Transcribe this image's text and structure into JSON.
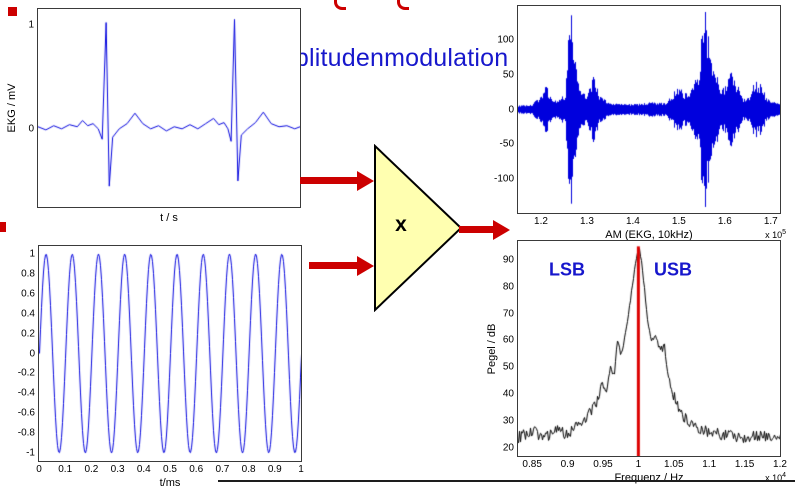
{
  "header": {
    "title": "Amplitudenmodulation"
  },
  "multiplier": {
    "symbol": "x"
  },
  "colors": {
    "arrow_red": "#cc0000",
    "trace_blue": "#0000dd",
    "title_blue": "#1717cc",
    "triangle_fill": "#ffffb0",
    "spectrum_black": "#000000",
    "carrier_red": "#dd0000"
  },
  "chart_data": [
    {
      "id": "ekg",
      "type": "line",
      "color": "#0000dd",
      "xlabel": "t / s",
      "ylabel": "EKG / mV",
      "xlim": [
        0,
        1
      ],
      "ylim": [
        -0.75,
        1.15
      ],
      "yticks": [
        0,
        1
      ],
      "points": [
        [
          0,
          0.02
        ],
        [
          0.03,
          -0.01
        ],
        [
          0.06,
          0.03
        ],
        [
          0.09,
          0
        ],
        [
          0.12,
          0.04
        ],
        [
          0.15,
          0.02
        ],
        [
          0.17,
          0.08
        ],
        [
          0.19,
          0.03
        ],
        [
          0.21,
          0.05
        ],
        [
          0.23,
          0
        ],
        [
          0.245,
          -0.1
        ],
        [
          0.26,
          1.02
        ],
        [
          0.272,
          -0.55
        ],
        [
          0.285,
          -0.08
        ],
        [
          0.31,
          0
        ],
        [
          0.34,
          0.05
        ],
        [
          0.37,
          0.15
        ],
        [
          0.4,
          0.05
        ],
        [
          0.43,
          0
        ],
        [
          0.46,
          0.03
        ],
        [
          0.49,
          -0.02
        ],
        [
          0.52,
          0.02
        ],
        [
          0.55,
          0
        ],
        [
          0.58,
          0.04
        ],
        [
          0.61,
          0
        ],
        [
          0.64,
          0.05
        ],
        [
          0.67,
          0.1
        ],
        [
          0.69,
          0.04
        ],
        [
          0.71,
          0.06
        ],
        [
          0.725,
          0
        ],
        [
          0.737,
          -0.12
        ],
        [
          0.75,
          1.05
        ],
        [
          0.763,
          -0.5
        ],
        [
          0.776,
          -0.06
        ],
        [
          0.8,
          0
        ],
        [
          0.83,
          0.06
        ],
        [
          0.86,
          0.16
        ],
        [
          0.89,
          0.05
        ],
        [
          0.92,
          0.02
        ],
        [
          0.95,
          0.03
        ],
        [
          0.98,
          0
        ],
        [
          1,
          0.02
        ]
      ]
    },
    {
      "id": "carrier",
      "type": "line",
      "signal": "sine",
      "color": "#0000dd",
      "cycles": 10,
      "amplitude": 1,
      "xlabel": "t/ms",
      "ylabel": "",
      "xlim": [
        0,
        1
      ],
      "ylim": [
        -1.08,
        1.08
      ],
      "xticks": [
        0,
        0.1,
        0.2,
        0.3,
        0.4,
        0.5,
        0.6,
        0.7,
        0.8,
        0.9,
        1
      ],
      "yticks": [
        1,
        0.8,
        0.6,
        0.4,
        0.2,
        0,
        -0.2,
        -0.4,
        -0.6,
        -0.8,
        -1
      ]
    },
    {
      "id": "am",
      "type": "am",
      "color": "#0000dd",
      "xlabel": "AM (EKG, 10kHz)",
      "exp_prefix": "x 10",
      "exp_power": "5",
      "xlim": [
        1.15,
        1.72
      ],
      "ylim": [
        -150,
        150
      ],
      "xticks": [
        1.2,
        1.3,
        1.4,
        1.5,
        1.6,
        1.7
      ],
      "yticks": [
        100,
        50,
        0,
        -50,
        -100
      ],
      "envelope": [
        [
          1.15,
          3
        ],
        [
          1.18,
          4
        ],
        [
          1.2,
          16
        ],
        [
          1.21,
          28
        ],
        [
          1.22,
          14
        ],
        [
          1.235,
          8
        ],
        [
          1.253,
          18
        ],
        [
          1.262,
          140
        ],
        [
          1.271,
          70
        ],
        [
          1.282,
          28
        ],
        [
          1.3,
          16
        ],
        [
          1.313,
          38
        ],
        [
          1.328,
          14
        ],
        [
          1.35,
          6
        ],
        [
          1.38,
          5
        ],
        [
          1.41,
          5
        ],
        [
          1.44,
          7
        ],
        [
          1.47,
          6
        ],
        [
          1.5,
          28
        ],
        [
          1.512,
          18
        ],
        [
          1.527,
          24
        ],
        [
          1.543,
          48
        ],
        [
          1.553,
          132
        ],
        [
          1.563,
          95
        ],
        [
          1.575,
          48
        ],
        [
          1.588,
          30
        ],
        [
          1.6,
          26
        ],
        [
          1.613,
          44
        ],
        [
          1.625,
          32
        ],
        [
          1.64,
          12
        ],
        [
          1.653,
          16
        ],
        [
          1.665,
          34
        ],
        [
          1.678,
          30
        ],
        [
          1.69,
          12
        ],
        [
          1.705,
          8
        ],
        [
          1.72,
          5
        ]
      ]
    },
    {
      "id": "spectrum",
      "type": "line",
      "color": "#000000",
      "noise": true,
      "xlabel": "Frequenz / Hz",
      "ylabel": "Pegel / dB",
      "exp_prefix": "x 10",
      "exp_power": "4",
      "xlim": [
        0.83,
        1.2
      ],
      "ylim": [
        17,
        97
      ],
      "xticks": [
        0.85,
        0.9,
        0.95,
        1,
        1.05,
        1.1,
        1.15,
        1.2
      ],
      "yticks": [
        20,
        30,
        40,
        50,
        60,
        70,
        80,
        90
      ],
      "carrier_line_x": 1,
      "carrier_top": 95,
      "carrier_color": "#dd0000",
      "points": [
        [
          0.83,
          24
        ],
        [
          0.85,
          26
        ],
        [
          0.87,
          24
        ],
        [
          0.88,
          27
        ],
        [
          0.9,
          25
        ],
        [
          0.91,
          28
        ],
        [
          0.92,
          30
        ],
        [
          0.93,
          33
        ],
        [
          0.94,
          36
        ],
        [
          0.948,
          44
        ],
        [
          0.953,
          40
        ],
        [
          0.96,
          50
        ],
        [
          0.965,
          47
        ],
        [
          0.97,
          60
        ],
        [
          0.975,
          54
        ],
        [
          0.98,
          61
        ],
        [
          0.985,
          69
        ],
        [
          0.99,
          79
        ],
        [
          0.995,
          88
        ],
        [
          1,
          95
        ],
        [
          1.004,
          89
        ],
        [
          1.008,
          79
        ],
        [
          1.013,
          66
        ],
        [
          1.018,
          59
        ],
        [
          1.024,
          62
        ],
        [
          1.03,
          56
        ],
        [
          1.036,
          58
        ],
        [
          1.042,
          46
        ],
        [
          1.05,
          39
        ],
        [
          1.06,
          33
        ],
        [
          1.07,
          30
        ],
        [
          1.08,
          28
        ],
        [
          1.09,
          27
        ],
        [
          1.1,
          26
        ],
        [
          1.12,
          25
        ],
        [
          1.15,
          24
        ],
        [
          1.17,
          25
        ],
        [
          1.2,
          23
        ]
      ],
      "annotations": [
        {
          "text": "LSB"
        },
        {
          "text": "USB"
        }
      ]
    }
  ]
}
